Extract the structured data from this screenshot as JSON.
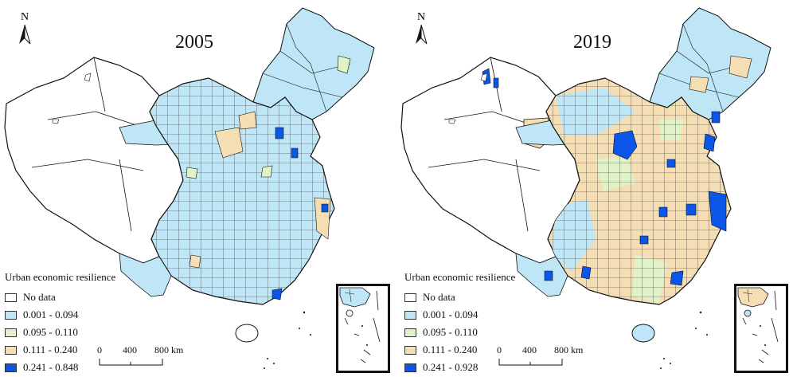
{
  "colors": {
    "no_data": "#ffffff",
    "class1": "#bfe6f6",
    "class2": "#dff3c6",
    "class3": "#f6deb4",
    "class4": "#0a56e8",
    "border": "#111111"
  },
  "icons": {
    "north_arrow": "north-arrow-icon"
  },
  "scale": {
    "label_0": "0",
    "label_400": "400",
    "label_800": "800 km"
  },
  "maps": [
    {
      "year": "2005",
      "north": "N",
      "legend": {
        "title": "Urban economic resilience",
        "items": [
          "No data",
          "0.001 - 0.094",
          "0.095 - 0.110",
          "0.111 - 0.240",
          "0.241 - 0.848"
        ]
      }
    },
    {
      "year": "2019",
      "north": "N",
      "legend": {
        "title": "Urban economic resilience",
        "items": [
          "No data",
          "0.001 - 0.094",
          "0.095 - 0.110",
          "0.111 - 0.240",
          "0.241 - 0.928"
        ]
      }
    }
  ]
}
